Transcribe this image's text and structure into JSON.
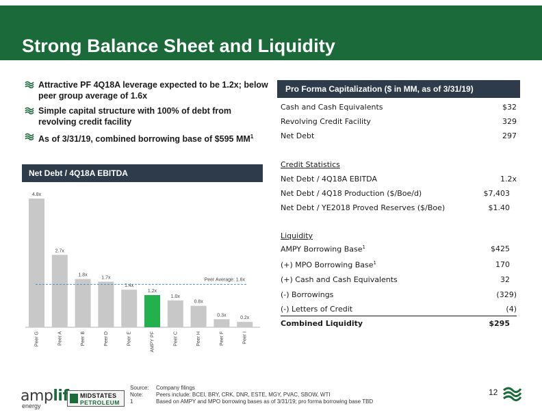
{
  "header": {
    "title": "Strong Balance Sheet and Liquidity"
  },
  "bullets": [
    {
      "text": "Attractive PF 4Q18A leverage expected to be 1.2x; below peer group average of 1.6x",
      "icon": "green-wave-icon"
    },
    {
      "text": "Simple capital structure with 100% of debt from revolving credit facility",
      "icon": "green-wave-icon"
    },
    {
      "text": "As of 3/31/19, combined borrowing base of $595 MM",
      "sup": "1",
      "icon": "green-wave-icon"
    }
  ],
  "chart": {
    "header": "Net Debt / 4Q18A EBITDA"
  },
  "chart_data": {
    "type": "bar",
    "categories": [
      "Peer G",
      "Peer A",
      "Peer B",
      "Peer D",
      "Peer E",
      "AMPY PF",
      "Peer C",
      "Peer H",
      "Peer F",
      "Peer I"
    ],
    "values": [
      4.8,
      2.7,
      1.8,
      1.7,
      1.4,
      1.2,
      1.0,
      0.8,
      0.3,
      0.2
    ],
    "value_labels": [
      "4.8x",
      "2.7x",
      "1.8x",
      "1.7x",
      "1.4x",
      "1.2x",
      "1.0x",
      "0.8x",
      "0.3x",
      "0.2x"
    ],
    "highlight_index": 5,
    "reference_line": {
      "value": 1.6,
      "label": "Peer Average: 1.6x"
    },
    "colors": {
      "bar": "#c8c8c8",
      "highlight": "#22b14c",
      "reference": "#4a90c8"
    }
  },
  "capitalization": {
    "header": "Pro Forma Capitalization ($ in MM, as of 3/31/19)",
    "summary": [
      {
        "label": "Cash and Cash Equivalents",
        "value": "$32"
      },
      {
        "label": "Revolving Credit Facility",
        "value": "329"
      },
      {
        "label": "Net Debt",
        "value": "297"
      }
    ],
    "credit_stats_title": "Credit Statistics",
    "credit_stats": [
      {
        "label": "Net Debt / 4Q18A EBITDA",
        "value": "1.2x"
      },
      {
        "label": "Net Debt / 4Q18 Production ($/Boe/d)",
        "value": "$7,403"
      },
      {
        "label": "Net Debt / YE2018 Proved Reserves ($/Boe)",
        "value": "$1.40"
      }
    ],
    "liquidity_title": "Liquidity",
    "liquidity": [
      {
        "label": "AMPY Borrowing Base",
        "sup": "1",
        "value": "$425"
      },
      {
        "label": "(+) MPO Borrowing Base",
        "sup": "1",
        "value": "170"
      },
      {
        "label": "(+) Cash and Cash Equivalents",
        "value": "32"
      },
      {
        "label": "(-) Borrowings",
        "value": "(329)"
      },
      {
        "label": "(-) Letters of Credit",
        "value": "(4)"
      }
    ],
    "total": {
      "label": "Combined Liquidity",
      "value": "$295"
    }
  },
  "footer": {
    "brand1": {
      "pre": "amp",
      "accent": "lify",
      "sub": "energy"
    },
    "brand2": {
      "top": "MIDSTATES",
      "bottom": "PETROLEUM"
    },
    "notes": [
      {
        "key": "Source:",
        "value": "Company filings"
      },
      {
        "key": "Note:",
        "value": "Peers include: BCEI, BRY, CRK, DNR, ESTE, MGY, PVAC, SBOW, WTI"
      },
      {
        "key": "1",
        "value": "Based on AMPY and MPO borrowing bases as of 3/31/19; pro forma borrowing base TBD"
      }
    ],
    "page_number": "12"
  }
}
